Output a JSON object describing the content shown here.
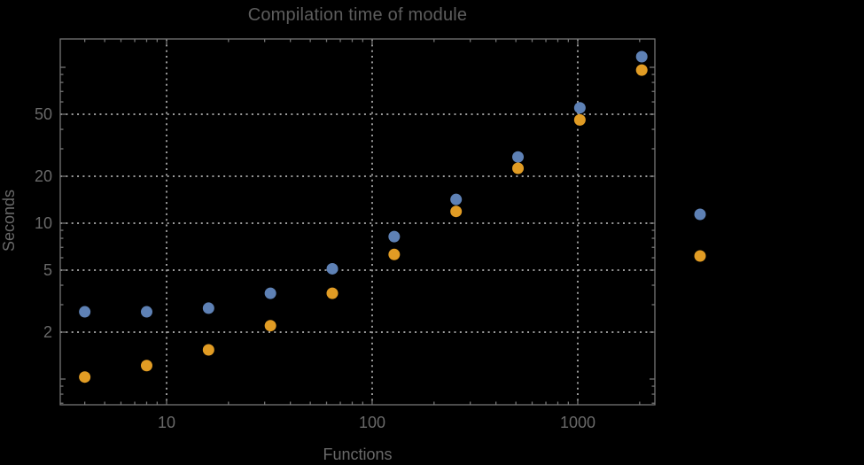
{
  "colors": {
    "background": "#000000",
    "frame": "#757575",
    "grid": "#9a9a9a",
    "tick_label": "#696969",
    "title": "#5d5d5d",
    "series_blue": "#5e81b5",
    "series_orange": "#e19c24"
  },
  "chart_data": {
    "type": "scatter",
    "title": "Compilation time of module",
    "xlabel": "Functions",
    "ylabel": "Seconds",
    "x_scale": "log",
    "y_scale": "log",
    "grid": true,
    "x_range": [
      3.04,
      2372
    ],
    "y_range": [
      0.684,
      152
    ],
    "x_ticks": [
      10,
      100,
      1000
    ],
    "y_ticks": [
      2,
      5,
      10,
      20,
      50
    ],
    "y_ticks_unlabeled": [
      1,
      100
    ],
    "categories": [
      4,
      8,
      16,
      32,
      64,
      128,
      256,
      512,
      1024,
      2048
    ],
    "series": [
      {
        "name": "blue",
        "color": "#5e81b5",
        "x": [
          4,
          8,
          16,
          32,
          64,
          128,
          256,
          512,
          1024,
          2048
        ],
        "y": [
          2.7,
          2.7,
          2.85,
          3.55,
          5.1,
          8.2,
          14.2,
          26.6,
          55,
          117
        ]
      },
      {
        "name": "orange",
        "color": "#e19c24",
        "x": [
          4,
          8,
          16,
          32,
          64,
          128,
          256,
          512,
          1024,
          2048
        ],
        "y": [
          1.03,
          1.22,
          1.54,
          2.2,
          3.55,
          6.3,
          11.9,
          22.5,
          46,
          96
        ]
      }
    ],
    "legend": {
      "position": "right-of-frame",
      "labels_visible": false,
      "markers": [
        {
          "color": "#5e81b5"
        },
        {
          "color": "#e19c24"
        }
      ]
    }
  }
}
